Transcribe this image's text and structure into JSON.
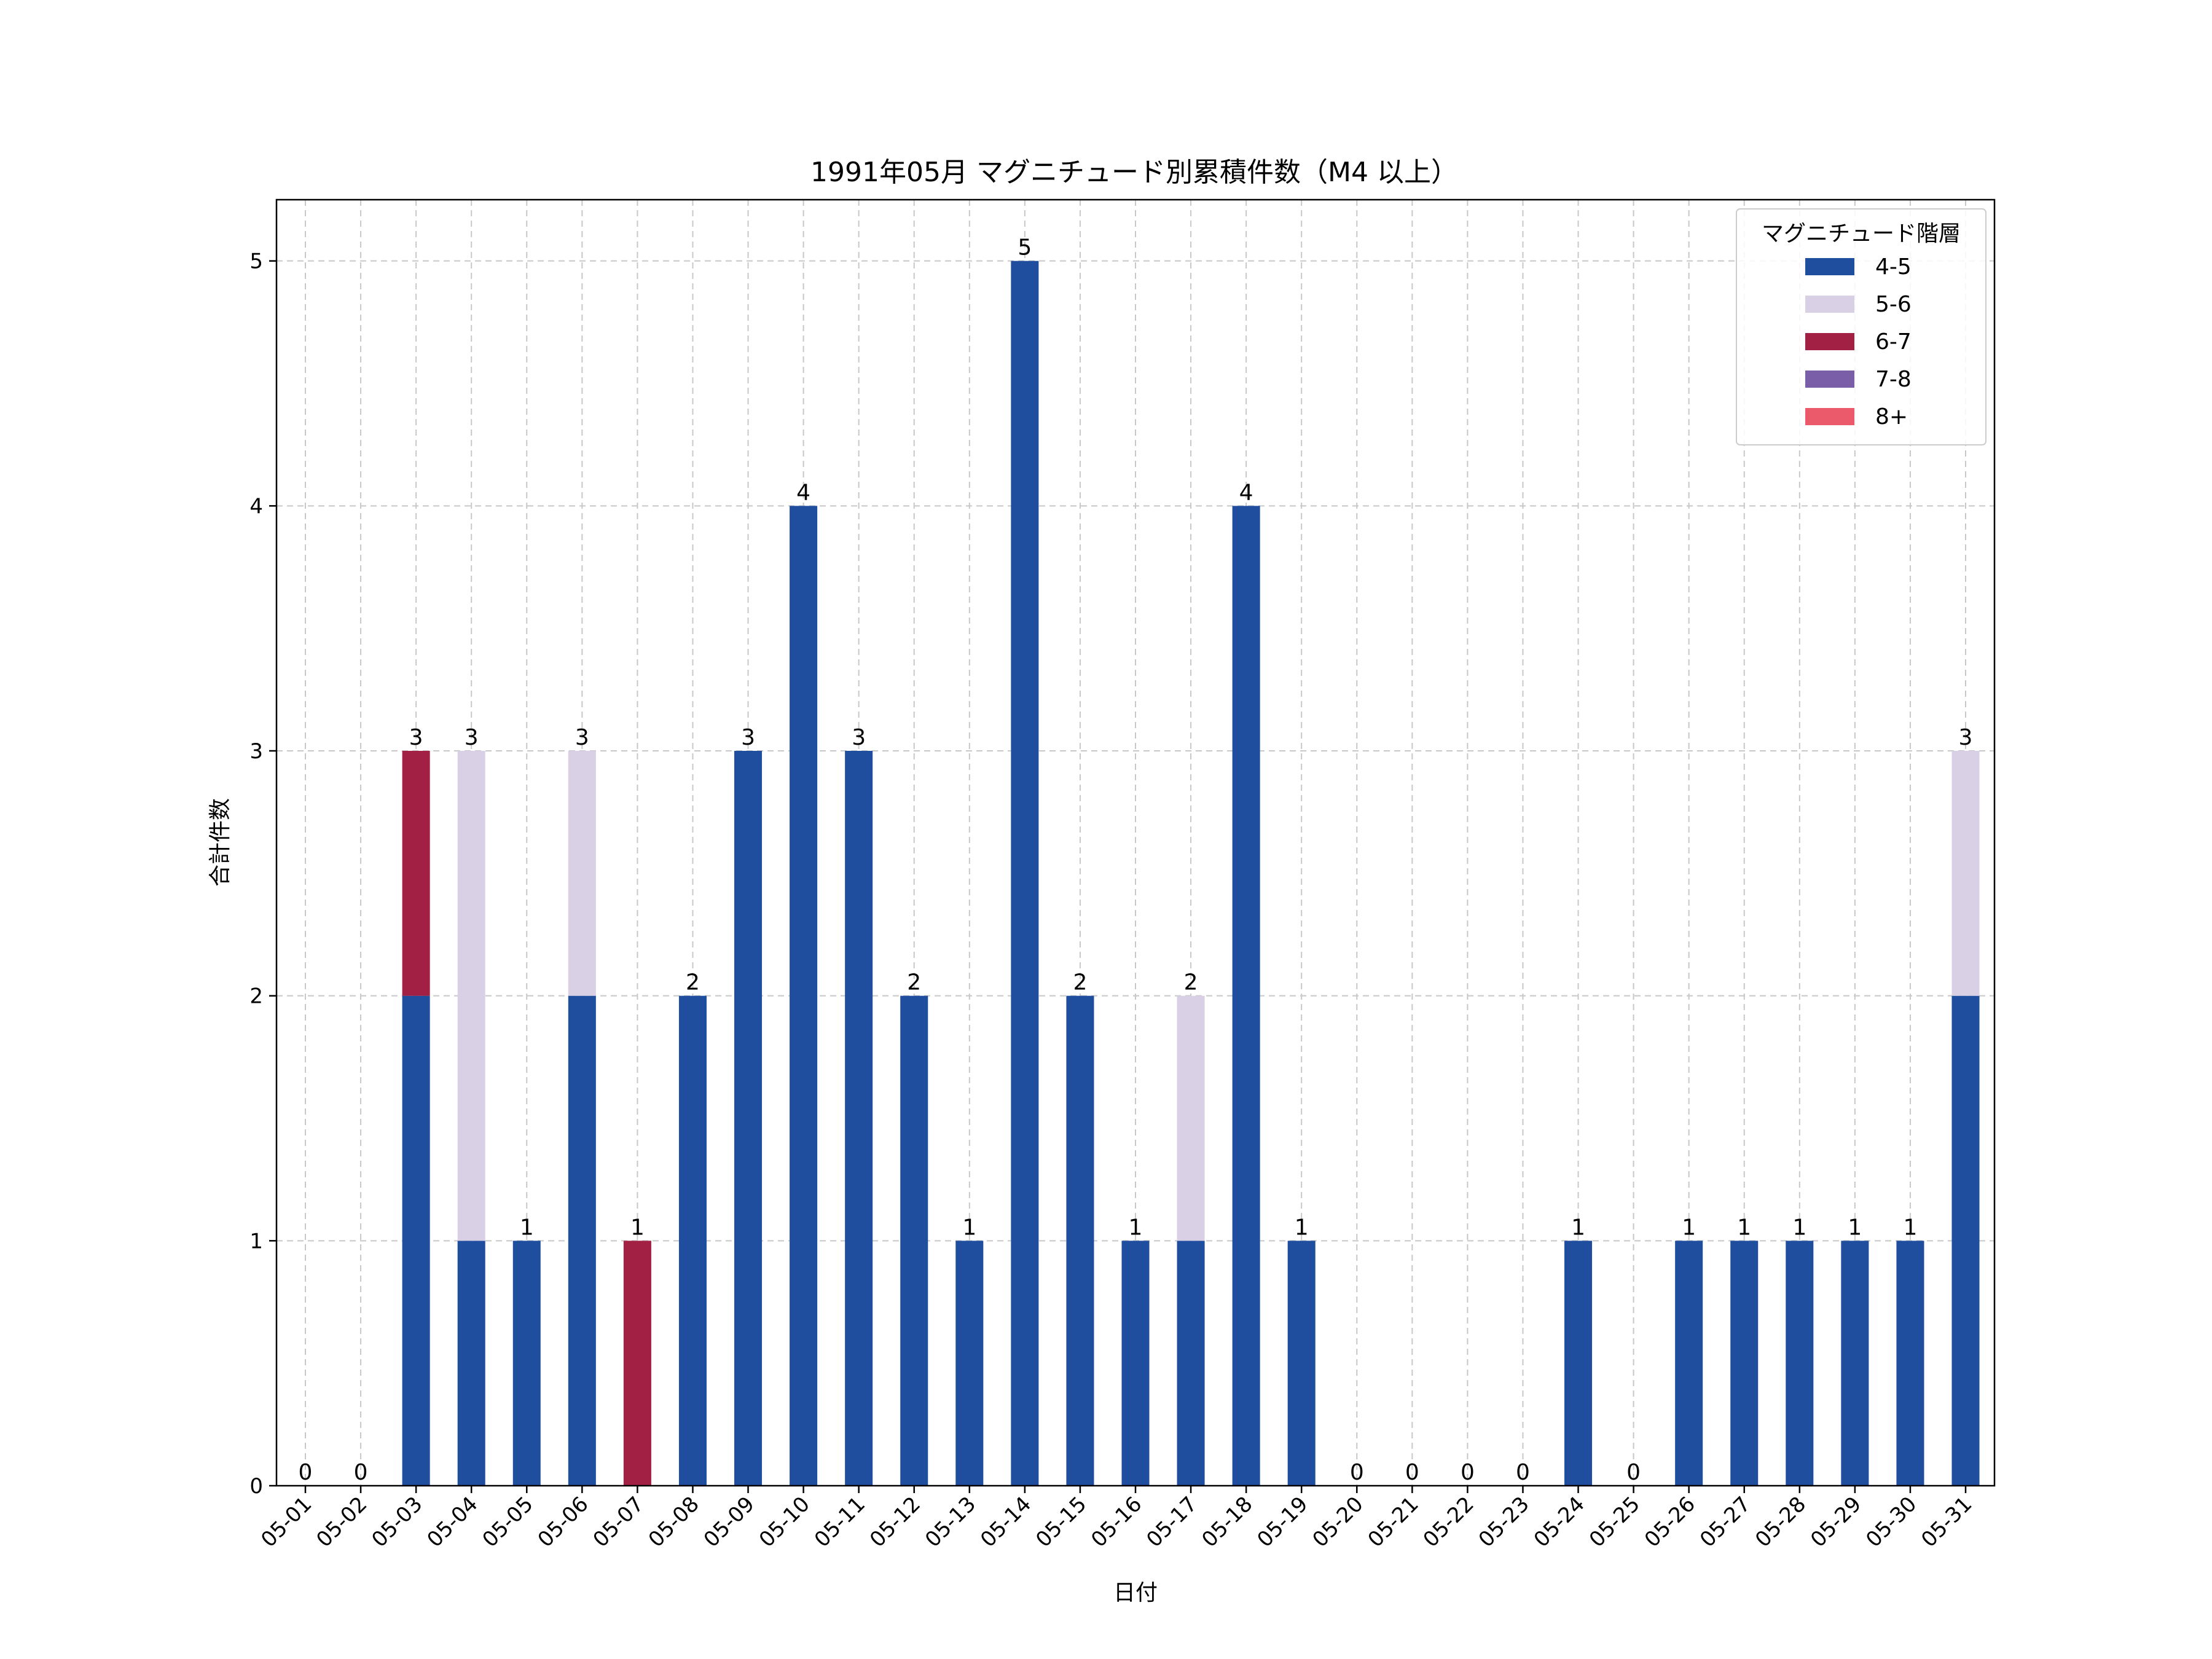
{
  "chart_data": {
    "type": "bar",
    "stacked": true,
    "title": "1991年05月 マグニチュード別累積件数（M4 以上）",
    "xlabel": "日付",
    "ylabel": "合計件数",
    "ylim": [
      0,
      5.25
    ],
    "yticks": [
      0,
      1,
      2,
      3,
      4,
      5
    ],
    "grid": true,
    "legend_title": "マグニチュード階層",
    "legend_position": "top-right",
    "categories": [
      "05-01",
      "05-02",
      "05-03",
      "05-04",
      "05-05",
      "05-06",
      "05-07",
      "05-08",
      "05-09",
      "05-10",
      "05-11",
      "05-12",
      "05-13",
      "05-14",
      "05-15",
      "05-16",
      "05-17",
      "05-18",
      "05-19",
      "05-20",
      "05-21",
      "05-22",
      "05-23",
      "05-24",
      "05-25",
      "05-26",
      "05-27",
      "05-28",
      "05-29",
      "05-30",
      "05-31"
    ],
    "series": [
      {
        "name": "4-5",
        "color": "#1f4e9e",
        "values": [
          0,
          0,
          2,
          1,
          1,
          2,
          0,
          2,
          3,
          4,
          3,
          2,
          1,
          5,
          2,
          1,
          1,
          4,
          1,
          0,
          0,
          0,
          0,
          1,
          0,
          1,
          1,
          1,
          1,
          1,
          2
        ]
      },
      {
        "name": "5-6",
        "color": "#dad0e6",
        "values": [
          0,
          0,
          0,
          2,
          0,
          1,
          0,
          0,
          0,
          0,
          0,
          0,
          0,
          0,
          0,
          0,
          1,
          0,
          0,
          0,
          0,
          0,
          0,
          0,
          0,
          0,
          0,
          0,
          0,
          0,
          1
        ]
      },
      {
        "name": "6-7",
        "color": "#a32045",
        "values": [
          0,
          0,
          1,
          0,
          0,
          0,
          1,
          0,
          0,
          0,
          0,
          0,
          0,
          0,
          0,
          0,
          0,
          0,
          0,
          0,
          0,
          0,
          0,
          0,
          0,
          0,
          0,
          0,
          0,
          0,
          0
        ]
      },
      {
        "name": "7-8",
        "color": "#7a5ea8",
        "values": [
          0,
          0,
          0,
          0,
          0,
          0,
          0,
          0,
          0,
          0,
          0,
          0,
          0,
          0,
          0,
          0,
          0,
          0,
          0,
          0,
          0,
          0,
          0,
          0,
          0,
          0,
          0,
          0,
          0,
          0,
          0
        ]
      },
      {
        "name": "8+",
        "color": "#eb5a6a",
        "values": [
          0,
          0,
          0,
          0,
          0,
          0,
          0,
          0,
          0,
          0,
          0,
          0,
          0,
          0,
          0,
          0,
          0,
          0,
          0,
          0,
          0,
          0,
          0,
          0,
          0,
          0,
          0,
          0,
          0,
          0,
          0
        ]
      }
    ],
    "totals": [
      0,
      0,
      3,
      3,
      1,
      3,
      1,
      2,
      3,
      4,
      3,
      2,
      1,
      5,
      2,
      1,
      2,
      4,
      1,
      0,
      0,
      0,
      0,
      1,
      0,
      1,
      1,
      1,
      1,
      1,
      3
    ]
  }
}
